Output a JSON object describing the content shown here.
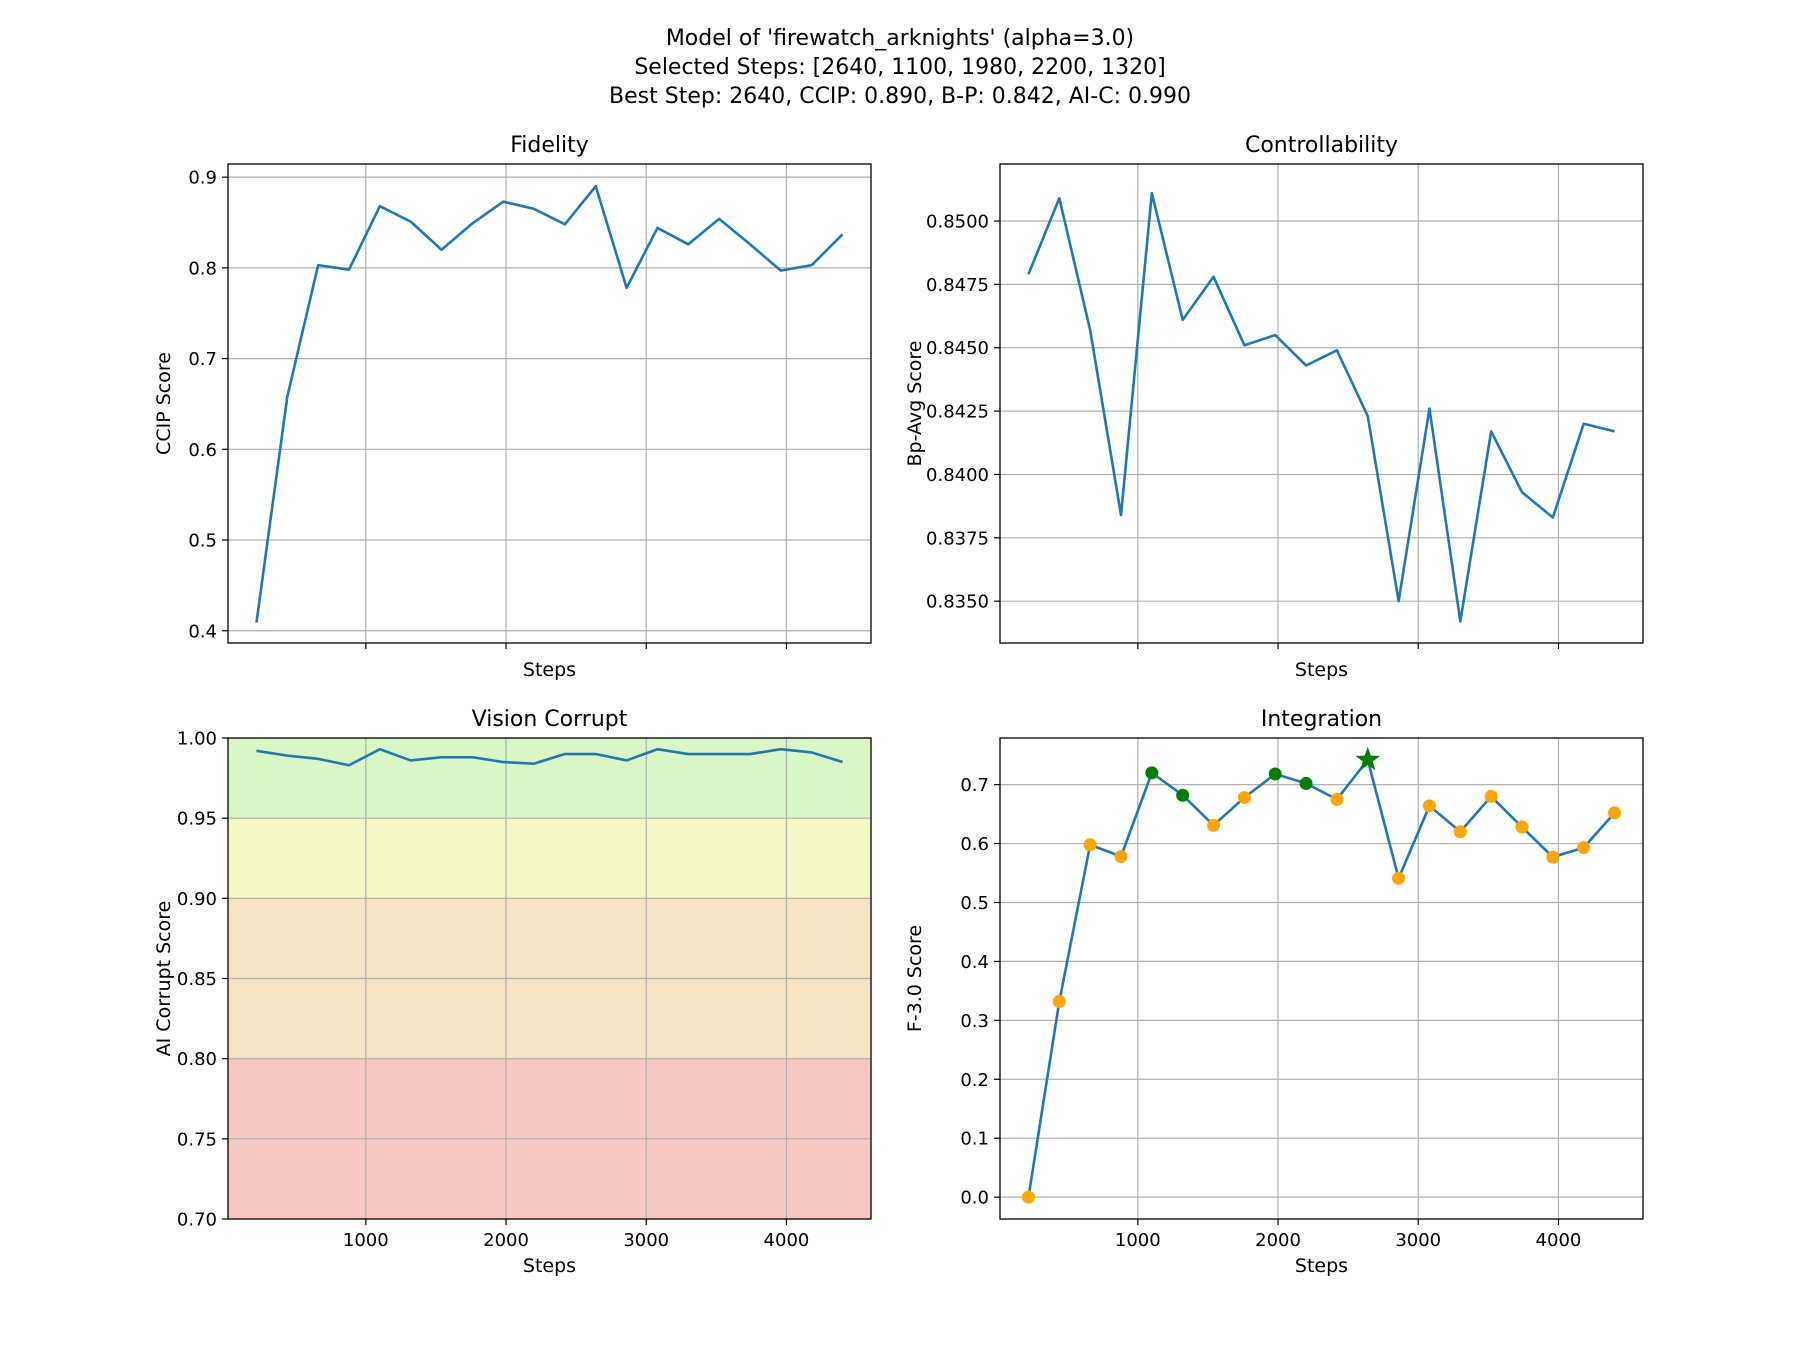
{
  "figure": {
    "title_lines": [
      "Model of 'firewatch_arknights' (alpha=3.0)",
      "Selected Steps: [2640, 1100, 1980, 2200, 1320]",
      "Best Step: 2640, CCIP: 0.890, B-P: 0.842, AI-C: 0.990"
    ]
  },
  "colors": {
    "line": "#1f77b4",
    "grid": "#b0b0b0",
    "marker_default": "#ffa500",
    "marker_selected": "#008000",
    "best_star": "#008000",
    "band_good": "#d9f7c4",
    "band_ok": "#f3f7c4",
    "band_warn": "#f5e4c4",
    "band_bad": "#f5c8c4"
  },
  "chart_data": [
    {
      "id": "fidelity",
      "type": "line",
      "title": "Fidelity",
      "xlabel": "Steps",
      "ylabel": "CCIP Score",
      "x": [
        220,
        440,
        660,
        880,
        1100,
        1320,
        1540,
        1760,
        1980,
        2200,
        2420,
        2640,
        2860,
        3080,
        3300,
        3520,
        3740,
        3960,
        4180,
        4400
      ],
      "y": [
        0.409,
        0.658,
        0.803,
        0.798,
        0.868,
        0.851,
        0.82,
        0.849,
        0.873,
        0.865,
        0.848,
        0.89,
        0.778,
        0.844,
        0.826,
        0.854,
        0.826,
        0.797,
        0.803,
        0.837
      ],
      "xlim": [
        17,
        4603
      ],
      "ylim": [
        0.3865,
        0.9145
      ],
      "xticks": [
        1000,
        2000,
        3000,
        4000
      ],
      "xtick_labels": [],
      "yticks": [
        0.4,
        0.5,
        0.6,
        0.7,
        0.8,
        0.9
      ],
      "ytick_labels": [
        "0.4",
        "0.5",
        "0.6",
        "0.7",
        "0.8",
        "0.9"
      ]
    },
    {
      "id": "controllability",
      "type": "line",
      "title": "Controllability",
      "xlabel": "Steps",
      "ylabel": "Bp-Avg Score",
      "x": [
        220,
        440,
        660,
        880,
        1100,
        1320,
        1540,
        1760,
        1980,
        2200,
        2420,
        2640,
        2860,
        3080,
        3300,
        3520,
        3740,
        3960,
        4180,
        4400
      ],
      "y": [
        0.8479,
        0.8509,
        0.8457,
        0.8384,
        0.8511,
        0.8461,
        0.8478,
        0.8451,
        0.8455,
        0.8443,
        0.8449,
        0.8423,
        0.835,
        0.8426,
        0.8342,
        0.8417,
        0.8393,
        0.8383,
        0.842,
        0.8417
      ],
      "xlim": [
        17,
        4603
      ],
      "ylim": [
        0.83335,
        0.85225
      ],
      "xticks": [
        1000,
        2000,
        3000,
        4000
      ],
      "xtick_labels": [],
      "yticks": [
        0.835,
        0.8375,
        0.84,
        0.8425,
        0.845,
        0.8475,
        0.85
      ],
      "ytick_labels": [
        "0.8350",
        "0.8375",
        "0.8400",
        "0.8425",
        "0.8450",
        "0.8475",
        "0.8500"
      ]
    },
    {
      "id": "vision-corrupt",
      "type": "line",
      "title": "Vision Corrupt",
      "xlabel": "Steps",
      "ylabel": "AI Corrupt Score",
      "x": [
        220,
        440,
        660,
        880,
        1100,
        1320,
        1540,
        1760,
        1980,
        2200,
        2420,
        2640,
        2860,
        3080,
        3300,
        3520,
        3740,
        3960,
        4180,
        4400
      ],
      "y": [
        0.992,
        0.989,
        0.987,
        0.983,
        0.993,
        0.986,
        0.988,
        0.988,
        0.985,
        0.984,
        0.99,
        0.99,
        0.986,
        0.993,
        0.99,
        0.99,
        0.99,
        0.993,
        0.991,
        0.985
      ],
      "xlim": [
        17,
        4603
      ],
      "ylim": [
        0.7,
        1.0
      ],
      "bands": [
        {
          "from": 0.95,
          "to": 1.0,
          "color_key": "band_good"
        },
        {
          "from": 0.9,
          "to": 0.95,
          "color_key": "band_ok"
        },
        {
          "from": 0.8,
          "to": 0.9,
          "color_key": "band_warn"
        },
        {
          "from": 0.7,
          "to": 0.8,
          "color_key": "band_bad"
        }
      ],
      "xticks": [
        1000,
        2000,
        3000,
        4000
      ],
      "xtick_labels": [
        "1000",
        "2000",
        "3000",
        "4000"
      ],
      "yticks": [
        0.7,
        0.75,
        0.8,
        0.85,
        0.9,
        0.95,
        1.0
      ],
      "ytick_labels": [
        "0.70",
        "0.75",
        "0.80",
        "0.85",
        "0.90",
        "0.95",
        "1.00"
      ]
    },
    {
      "id": "integration",
      "type": "line",
      "title": "Integration",
      "xlabel": "Steps",
      "ylabel": "F-3.0 Score",
      "x": [
        220,
        440,
        660,
        880,
        1100,
        1320,
        1540,
        1760,
        1980,
        2200,
        2420,
        2640,
        2860,
        3080,
        3300,
        3520,
        3740,
        3960,
        4180,
        4400
      ],
      "y": [
        0.0,
        0.332,
        0.598,
        0.578,
        0.72,
        0.682,
        0.631,
        0.678,
        0.718,
        0.702,
        0.675,
        0.742,
        0.541,
        0.664,
        0.62,
        0.68,
        0.628,
        0.577,
        0.593,
        0.652
      ],
      "selected_steps": [
        2640,
        1100,
        1980,
        2200,
        1320
      ],
      "best_step": 2640,
      "xlim": [
        17,
        4603
      ],
      "ylim": [
        -0.0371,
        0.7791
      ],
      "xticks": [
        1000,
        2000,
        3000,
        4000
      ],
      "xtick_labels": [
        "1000",
        "2000",
        "3000",
        "4000"
      ],
      "yticks": [
        0.0,
        0.1,
        0.2,
        0.3,
        0.4,
        0.5,
        0.6,
        0.7
      ],
      "ytick_labels": [
        "0.0",
        "0.1",
        "0.2",
        "0.3",
        "0.4",
        "0.5",
        "0.6",
        "0.7"
      ]
    }
  ]
}
